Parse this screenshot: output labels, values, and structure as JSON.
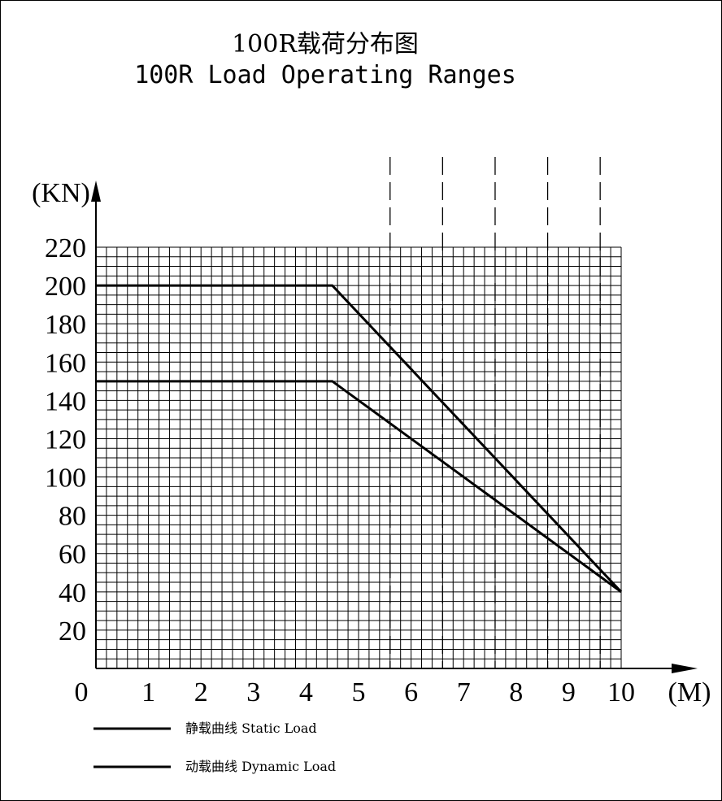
{
  "chart_data": {
    "type": "line",
    "title": "100R载荷分布图",
    "subtitle": "100R Load Operating Ranges",
    "xlabel": "(M)",
    "ylabel": "(KN)",
    "xlim": [
      0,
      10
    ],
    "ylim": [
      0,
      220
    ],
    "x_ticks": [
      "0",
      "1",
      "2",
      "3",
      "4",
      "5",
      "6",
      "7",
      "8",
      "9",
      "10"
    ],
    "y_ticks": [
      "20",
      "40",
      "60",
      "80",
      "100",
      "120",
      "140",
      "160",
      "180",
      "200",
      "220"
    ],
    "grid": true,
    "reference_lines_x": [
      5.6,
      6.6,
      7.6,
      8.6,
      9.6
    ],
    "series": [
      {
        "name": "静载曲线 Static Load",
        "x": [
          0,
          4.5,
          10
        ],
        "y": [
          200,
          200,
          40
        ]
      },
      {
        "name": "动载曲线 Dynamic Load",
        "x": [
          0,
          4.5,
          10
        ],
        "y": [
          150,
          150,
          40
        ]
      }
    ],
    "legend": [
      {
        "label": "静载曲线  Static Load"
      },
      {
        "label": "动载曲线 Dynamic Load"
      }
    ],
    "legend_position": "bottom-left"
  }
}
